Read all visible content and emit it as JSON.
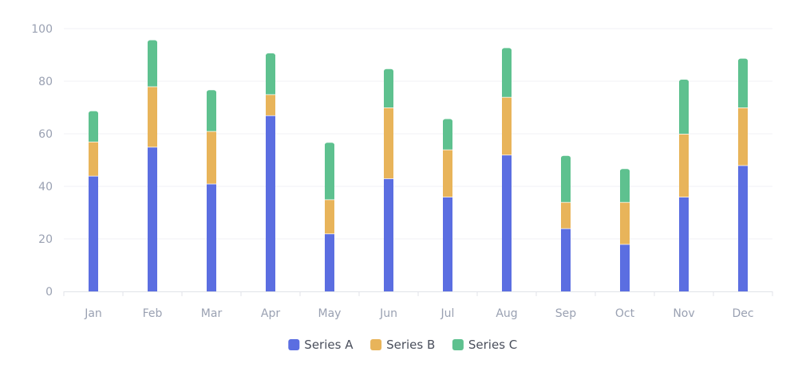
{
  "chart_data": {
    "type": "bar",
    "stacked": true,
    "categories": [
      "Jan",
      "Feb",
      "Mar",
      "Apr",
      "May",
      "Jun",
      "Jul",
      "Aug",
      "Sep",
      "Oct",
      "Nov",
      "Dec"
    ],
    "series": [
      {
        "name": "Series A",
        "color": "#5b6ee1",
        "values": [
          44,
          55,
          41,
          67,
          22,
          43,
          36,
          52,
          24,
          18,
          36,
          48
        ]
      },
      {
        "name": "Series B",
        "color": "#e8b45a",
        "values": [
          13,
          23,
          20,
          8,
          13,
          27,
          18,
          22,
          10,
          16,
          24,
          22
        ]
      },
      {
        "name": "Series C",
        "color": "#5ec18f",
        "values": [
          11,
          17,
          15,
          15,
          21,
          14,
          11,
          18,
          17,
          12,
          20,
          18
        ]
      }
    ],
    "y_ticks": [
      "0",
      "20",
      "40",
      "60",
      "80",
      "100"
    ],
    "ylim": [
      0,
      100
    ],
    "grid": "horizontal",
    "legend_position": "bottom-center"
  }
}
